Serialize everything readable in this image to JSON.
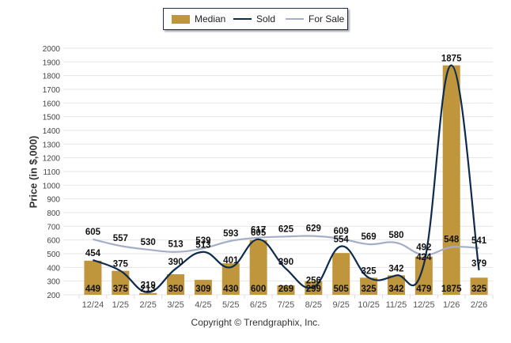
{
  "chart_data": {
    "type": "bar",
    "title": "",
    "xlabel": "",
    "ylabel": "Price (in $,000)",
    "ylim": [
      200,
      2000
    ],
    "ytick_step": 100,
    "grid": true,
    "legend_position": "top-center",
    "categories": [
      "12/24",
      "1/25",
      "2/25",
      "3/25",
      "4/25",
      "5/25",
      "6/25",
      "7/25",
      "8/25",
      "9/25",
      "10/25",
      "11/25",
      "12/25",
      "1/26",
      "2/26"
    ],
    "series": [
      {
        "name": "Median",
        "kind": "bar",
        "color": "#c0963d",
        "values": [
          449,
          375,
          213,
          350,
          309,
          430,
          600,
          269,
          299,
          505,
          325,
          342,
          479,
          1875,
          325
        ]
      },
      {
        "name": "Sold",
        "kind": "line",
        "color": "#0d2a4f",
        "values": [
          454,
          375,
          219,
          390,
          513,
          401,
          605,
          390,
          256,
          554,
          325,
          342,
          424,
          1875,
          379
        ]
      },
      {
        "name": "For Sale",
        "kind": "line",
        "color": "#a6adc8",
        "values": [
          605,
          557,
          530,
          513,
          539,
          593,
          617,
          625,
          629,
          609,
          569,
          580,
          492,
          548,
          541
        ]
      }
    ]
  },
  "legend": {
    "median": "Median",
    "sold": "Sold",
    "for_sale": "For Sale"
  },
  "axis": {
    "ylabel": "Price (in $,000)"
  },
  "footer": {
    "copyright": "Copyright © Trendgraphix, Inc."
  }
}
